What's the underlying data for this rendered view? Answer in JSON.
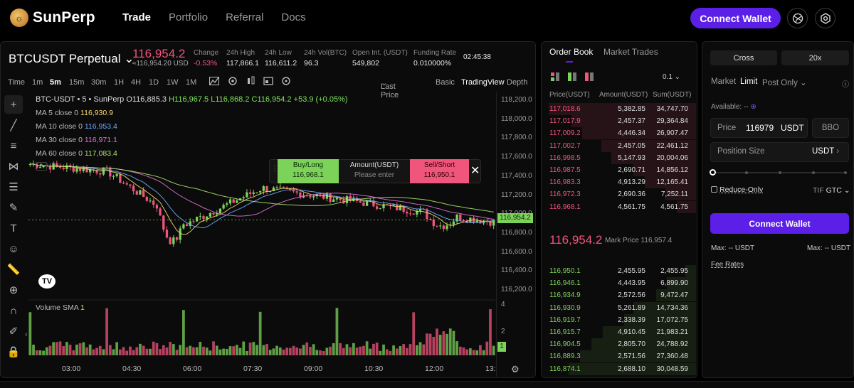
{
  "nav": {
    "brand": "SunPerp",
    "links": [
      "Trade",
      "Portfolio",
      "Referral",
      "Docs"
    ],
    "connect_label": "Connect Wallet"
  },
  "ticker": {
    "symbol": "BTCUSDT Perpetual",
    "last_price": "116,954.2",
    "mark_sub": "≈116,954.20 USD",
    "change_label": "Change",
    "change_value": "-0.53%",
    "high_label": "24h High",
    "high_value": "117,866.1",
    "low_label": "24h Low",
    "low_value": "116,611.2",
    "vol_label": "24h Vol(BTC)",
    "vol_value": "96.3",
    "oi_label": "Open Int. (USDT)",
    "oi_value": "549,802",
    "funding_label": "Funding Rate",
    "funding_value": "0.010000%",
    "countdown": "02:45:38"
  },
  "toolbar": {
    "time_label": "Time",
    "intervals": [
      "1m",
      "5m",
      "15m",
      "30m",
      "1H",
      "4H",
      "1D",
      "1W",
      "1M"
    ],
    "active_interval": "5m",
    "price_source": "Last Price",
    "views": [
      "Basic",
      "TradingView",
      "Depth"
    ],
    "active_view": "TradingView"
  },
  "chart": {
    "title": "BTC-USDT • 5 • SunPerp",
    "ohlc_o": "O116,885.3",
    "ohlc_h": "H116,967.5",
    "ohlc_l": "L116,868.2",
    "ohlc_c": "C116,954.2",
    "ohlc_chg": "+53.9 (+0.05%)",
    "ma": [
      {
        "label": "MA 5 close 0",
        "value": "116,930.9",
        "color": "#f5d76e"
      },
      {
        "label": "MA 10 close 0",
        "value": "116,953.4",
        "color": "#6aa8ff"
      },
      {
        "label": "MA 30 close 0",
        "value": "116,971.1",
        "color": "#e070d8"
      },
      {
        "label": "MA 60 close 0",
        "value": "117,083.4",
        "color": "#a8e26c"
      }
    ],
    "price_ticks": [
      "118,200.0",
      "118,000.0",
      "117,800.0",
      "117,600.0",
      "117,400.0",
      "117,200.0",
      "117,000.0",
      "116,800.0",
      "116,600.0",
      "116,400.0",
      "116,200.0"
    ],
    "current_price_tag": "116,954.2",
    "volume_label": "Volume SMA",
    "volume_value": "1",
    "volume_ticks": [
      "4",
      "2"
    ],
    "volume_tag": "1",
    "time_ticks": [
      "03:00",
      "04:30",
      "06:00",
      "07:30",
      "09:00",
      "10:30",
      "12:00",
      "13:"
    ],
    "buy_color": "#7dd35a",
    "sell_color": "#f0557c"
  },
  "chart_data": {
    "type": "candlestick",
    "x": [
      "03:00",
      "04:30",
      "06:00",
      "07:30",
      "09:00",
      "10:30",
      "12:00"
    ],
    "series": [
      {
        "name": "MA 5 close 0",
        "values": [
          117560,
          117480,
          116900,
          117300,
          117180,
          117050,
          116930
        ]
      },
      {
        "name": "MA 10 close 0",
        "values": [
          117560,
          117470,
          117000,
          117280,
          117200,
          117070,
          116953
        ]
      },
      {
        "name": "MA 30 close 0",
        "values": [
          117520,
          117440,
          117120,
          117270,
          117160,
          117060,
          116971
        ]
      },
      {
        "name": "MA 60 close 0",
        "values": [
          117500,
          117460,
          117300,
          117250,
          117150,
          117080,
          117083
        ]
      }
    ],
    "ylim": [
      116100,
      118300
    ]
  },
  "quick_trade": {
    "buy_label": "Buy/Long",
    "buy_price": "116,968.1",
    "amount_label": "Amount(USDT)",
    "amount_placeholder": "Please enter",
    "sell_label": "Sell/Short",
    "sell_price": "116,950.1"
  },
  "orderbook": {
    "tabs": [
      "Order Book",
      "Market Trades"
    ],
    "precision": "0.1",
    "headers": [
      "Price(USDT)",
      "Amount(USDT)",
      "Sum(USDT)"
    ],
    "asks": [
      [
        "117,018.6",
        "5,382.85",
        "34,747.70"
      ],
      [
        "117,017.9",
        "2,457.37",
        "29,364.84"
      ],
      [
        "117,009.2",
        "4,446.34",
        "26,907.47"
      ],
      [
        "117,002.7",
        "2,457.05",
        "22,461.12"
      ],
      [
        "116,998.5",
        "5,147.93",
        "20,004.06"
      ],
      [
        "116,987.5",
        "2,690.71",
        "14,856.12"
      ],
      [
        "116,983.3",
        "4,913.29",
        "12,165.41"
      ],
      [
        "116,972.3",
        "2,690.36",
        "7,252.11"
      ],
      [
        "116,968.1",
        "4,561.75",
        "4,561.75"
      ]
    ],
    "mid_price": "116,954.2",
    "mark_label": "Mark Price 116,957.4",
    "bids": [
      [
        "116,950.1",
        "2,455.95",
        "2,455.95"
      ],
      [
        "116,946.1",
        "4,443.95",
        "6,899.90"
      ],
      [
        "116,934.9",
        "2,572.56",
        "9,472.47"
      ],
      [
        "116,930.9",
        "5,261.89",
        "14,734.36"
      ],
      [
        "116,919.7",
        "2,338.39",
        "17,072.75"
      ],
      [
        "116,915.7",
        "4,910.45",
        "21,983.21"
      ],
      [
        "116,904.5",
        "2,805.70",
        "24,788.92"
      ],
      [
        "116,889.3",
        "2,571.56",
        "27,360.48"
      ],
      [
        "116,874.1",
        "2,688.10",
        "30,048.59"
      ]
    ]
  },
  "order_panel": {
    "margin_mode": "Cross",
    "leverage": "20x",
    "order_types": [
      "Market",
      "Limit",
      "Post Only"
    ],
    "active_type": "Limit",
    "available_label": "Available: --",
    "price_label": "Price",
    "price_value": "116979",
    "price_unit": "USDT",
    "bbo_label": "BBO",
    "size_placeholder": "Position Size",
    "size_unit": "USDT",
    "reduce_only": "Reduce-Only",
    "tif_label": "TIF",
    "tif_value": "GTC",
    "connect_label": "Connect Wallet",
    "max_left": "Max: -- USDT",
    "max_right": "Max: -- USDT",
    "fee_rates": "Fee Rates"
  }
}
